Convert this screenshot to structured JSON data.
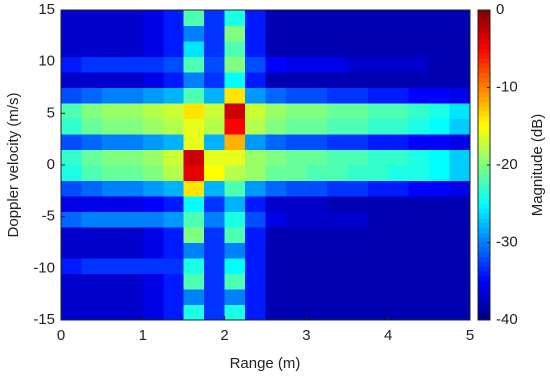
{
  "chart_data": {
    "type": "heatmap",
    "colormap": "jet",
    "xlabel": "Range (m)",
    "ylabel": "Doppler velocity (m/s)",
    "colorbar_label": "Magnitude (dB)",
    "x": [
      0.125,
      0.375,
      0.625,
      0.875,
      1.125,
      1.375,
      1.625,
      1.875,
      2.125,
      2.375,
      2.625,
      2.875,
      3.125,
      3.375,
      3.625,
      3.875,
      4.125,
      4.375,
      4.625,
      4.875
    ],
    "y": [
      -14.25,
      -12.75,
      -11.25,
      -9.75,
      -8.25,
      -6.75,
      -5.25,
      -3.75,
      -2.25,
      -0.75,
      0.75,
      2.25,
      3.75,
      5.25,
      6.75,
      8.25,
      9.75,
      11.25,
      12.75,
      14.25
    ],
    "z": [
      [
        -37,
        -37,
        -37,
        -37,
        -36,
        -34,
        -24,
        -33,
        -24,
        -34,
        -38,
        -38,
        -38,
        -38,
        -38,
        -38,
        -38,
        -38,
        -38,
        -38
      ],
      [
        -37,
        -37,
        -37,
        -37,
        -36,
        -34,
        -30,
        -33,
        -30,
        -34,
        -38,
        -38,
        -38,
        -38,
        -38,
        -38,
        -38,
        -38,
        -38,
        -38
      ],
      [
        -37,
        -37,
        -37,
        -37,
        -36,
        -34,
        -22,
        -33,
        -22,
        -34,
        -38,
        -38,
        -38,
        -38,
        -38,
        -38,
        -38,
        -38,
        -38,
        -38
      ],
      [
        -34,
        -33,
        -33,
        -33,
        -33,
        -33,
        -24,
        -33,
        -25,
        -34,
        -38,
        -38,
        -38,
        -38,
        -38,
        -38,
        -38,
        -38,
        -38,
        -38
      ],
      [
        -37,
        -37,
        -37,
        -37,
        -36,
        -34,
        -30,
        -33,
        -30,
        -34,
        -38,
        -38,
        -38,
        -38,
        -38,
        -38,
        -38,
        -38,
        -38,
        -38
      ],
      [
        -37,
        -37,
        -37,
        -37,
        -36,
        -34,
        -20,
        -33,
        -22,
        -34,
        -38,
        -38,
        -38,
        -38,
        -38,
        -38,
        -38,
        -38,
        -38,
        -38
      ],
      [
        -31,
        -30,
        -30,
        -30,
        -30,
        -29,
        -22,
        -30,
        -24,
        -32,
        -36,
        -37,
        -37,
        -37,
        -37,
        -38,
        -38,
        -38,
        -38,
        -38
      ],
      [
        -36,
        -36,
        -36,
        -36,
        -35,
        -34,
        -25,
        -33,
        -28,
        -34,
        -37,
        -37,
        -37,
        -38,
        -38,
        -38,
        -38,
        -38,
        -38,
        -38
      ],
      [
        -32,
        -31,
        -30,
        -30,
        -29,
        -28,
        -14,
        -28,
        -22,
        -29,
        -31,
        -32,
        -32,
        -33,
        -33,
        -34,
        -34,
        -35,
        -35,
        -36
      ],
      [
        -24,
        -22,
        -21,
        -21,
        -20,
        -18,
        -4,
        -15,
        -18,
        -19,
        -21,
        -21,
        -22,
        -22,
        -23,
        -23,
        -24,
        -24,
        -25,
        -27
      ],
      [
        -23,
        -21,
        -20,
        -20,
        -19,
        -17,
        -3,
        -16,
        -16,
        -19,
        -20,
        -21,
        -21,
        -22,
        -22,
        -23,
        -23,
        -24,
        -25,
        -27
      ],
      [
        -32,
        -31,
        -30,
        -30,
        -29,
        -28,
        -16,
        -28,
        -12,
        -29,
        -31,
        -32,
        -32,
        -33,
        -33,
        -34,
        -34,
        -35,
        -35,
        -36
      ],
      [
        -23,
        -21,
        -20,
        -20,
        -19,
        -18,
        -16,
        -18,
        -5,
        -18,
        -20,
        -21,
        -21,
        -22,
        -22,
        -23,
        -23,
        -24,
        -25,
        -27
      ],
      [
        -22,
        -20,
        -19,
        -19,
        -18,
        -17,
        -14,
        -17,
        -3,
        -17,
        -19,
        -20,
        -20,
        -21,
        -21,
        -22,
        -22,
        -23,
        -24,
        -26
      ],
      [
        -32,
        -31,
        -30,
        -30,
        -29,
        -28,
        -22,
        -28,
        -14,
        -29,
        -31,
        -32,
        -32,
        -33,
        -33,
        -34,
        -34,
        -35,
        -35,
        -36
      ],
      [
        -37,
        -37,
        -37,
        -37,
        -36,
        -34,
        -30,
        -33,
        -25,
        -34,
        -38,
        -38,
        -38,
        -38,
        -38,
        -38,
        -38,
        -38,
        -38,
        -38
      ],
      [
        -34,
        -33,
        -33,
        -33,
        -33,
        -32,
        -22,
        -32,
        -20,
        -32,
        -35,
        -36,
        -36,
        -36,
        -37,
        -37,
        -37,
        -37,
        -38,
        -38
      ],
      [
        -37,
        -37,
        -37,
        -37,
        -36,
        -34,
        -26,
        -33,
        -22,
        -34,
        -38,
        -38,
        -38,
        -38,
        -38,
        -38,
        -38,
        -38,
        -38,
        -38
      ],
      [
        -37,
        -37,
        -37,
        -37,
        -36,
        -34,
        -30,
        -33,
        -20,
        -34,
        -38,
        -38,
        -38,
        -38,
        -38,
        -38,
        -38,
        -38,
        -38,
        -38
      ],
      [
        -37,
        -37,
        -37,
        -37,
        -36,
        -34,
        -22,
        -33,
        -24,
        -34,
        -38,
        -38,
        -38,
        -38,
        -38,
        -38,
        -38,
        -38,
        -38,
        -38
      ]
    ],
    "xlim": [
      0,
      5
    ],
    "xticks": [
      0,
      1,
      2,
      3,
      4,
      5
    ],
    "ylim": [
      -15,
      15
    ],
    "yticks": [
      -15,
      -10,
      -5,
      0,
      5,
      10,
      15
    ],
    "zlim": [
      -40,
      0
    ],
    "zticks": [
      -40,
      -30,
      -20,
      -10,
      0
    ]
  }
}
